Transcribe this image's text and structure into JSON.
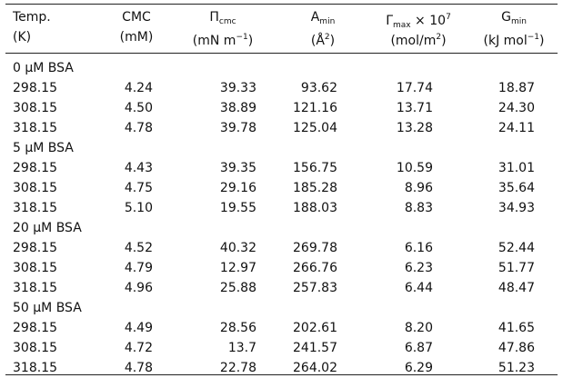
{
  "table": {
    "headers": [
      [
        [
          {
            "t": "Temp."
          }
        ],
        [
          {
            "t": "(K)"
          }
        ]
      ],
      [
        [
          {
            "t": "CMC"
          }
        ],
        [
          {
            "t": "(mM)"
          }
        ]
      ],
      [
        [
          {
            "t": "Π"
          },
          {
            "sub": "cmc"
          }
        ],
        [
          {
            "t": "(mN m"
          },
          {
            "sup": "−1"
          },
          {
            "t": ")"
          }
        ]
      ],
      [
        [
          {
            "t": "A"
          },
          {
            "sub": "min"
          }
        ],
        [
          {
            "t": "(Å"
          },
          {
            "sup": "2"
          },
          {
            "t": ")"
          }
        ]
      ],
      [
        [
          {
            "t": "Γ"
          },
          {
            "sub": "max"
          },
          {
            "t": " × 10"
          },
          {
            "sup": "7"
          }
        ],
        [
          {
            "t": "(mol/m"
          },
          {
            "sup": "2"
          },
          {
            "t": ")"
          }
        ]
      ],
      [
        [
          {
            "t": "G"
          },
          {
            "sub": "min"
          }
        ],
        [
          {
            "t": "(kJ mol"
          },
          {
            "sup": "−1"
          },
          {
            "t": ")"
          }
        ]
      ]
    ],
    "groups": [
      {
        "label": "0 μM BSA",
        "rows": [
          [
            "298.15",
            "4.24",
            "39.33",
            "93.62",
            "17.74",
            "18.87"
          ],
          [
            "308.15",
            "4.50",
            "38.89",
            "121.16",
            "13.71",
            "24.30"
          ],
          [
            "318.15",
            "4.78",
            "39.78",
            "125.04",
            "13.28",
            "24.11"
          ]
        ]
      },
      {
        "label": "5 μM BSA",
        "rows": [
          [
            "298.15",
            "4.43",
            "39.35",
            "156.75",
            "10.59",
            "31.01"
          ],
          [
            "308.15",
            "4.75",
            "29.16",
            "185.28",
            "8.96",
            "35.64"
          ],
          [
            "318.15",
            "5.10",
            "19.55",
            "188.03",
            "8.83",
            "34.93"
          ]
        ]
      },
      {
        "label": "20 μM BSA",
        "rows": [
          [
            "298.15",
            "4.52",
            "40.32",
            "269.78",
            "6.16",
            "52.44"
          ],
          [
            "308.15",
            "4.79",
            "12.97",
            "266.76",
            "6.23",
            "51.77"
          ],
          [
            "318.15",
            "4.96",
            "25.88",
            "257.83",
            "6.44",
            "48.47"
          ]
        ]
      },
      {
        "label": "50 μM BSA",
        "rows": [
          [
            "298.15",
            "4.49",
            "28.56",
            "202.61",
            "8.20",
            "41.65"
          ],
          [
            "308.15",
            "4.72",
            "13.7",
            "241.57",
            "6.87",
            "47.86"
          ],
          [
            "318.15",
            "4.78",
            "22.78",
            "264.02",
            "6.29",
            "51.23"
          ]
        ]
      }
    ]
  }
}
